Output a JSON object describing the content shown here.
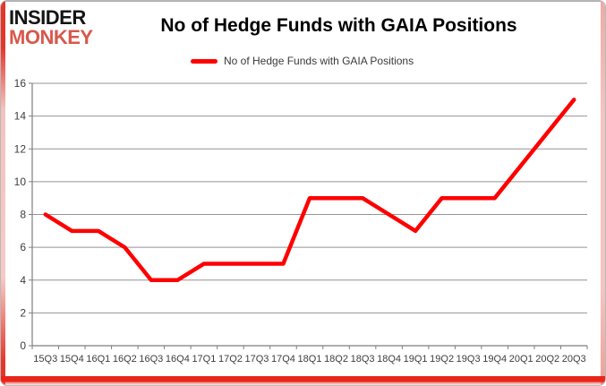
{
  "logo": {
    "line1": "INSIDER",
    "line2": "MONKEY"
  },
  "title": "No of Hedge Funds with GAIA Positions",
  "legend": {
    "label": "No of Hedge Funds with GAIA Positions"
  },
  "colors": {
    "line": "#fe0000",
    "logo_black": "#141414",
    "logo_red": "#d8584b",
    "border_red": "#e8251a",
    "gridline": "#949494",
    "axis": "#7e7e7e",
    "tick_label": "#3d3d3d"
  },
  "chart_data": {
    "type": "line",
    "title": "No of Hedge Funds with GAIA Positions",
    "categories": [
      "15Q3",
      "15Q4",
      "16Q1",
      "16Q2",
      "16Q3",
      "16Q4",
      "17Q1",
      "17Q2",
      "17Q3",
      "17Q4",
      "18Q1",
      "18Q2",
      "18Q3",
      "18Q4",
      "19Q1",
      "19Q2",
      "19Q3",
      "19Q4",
      "20Q1",
      "20Q2",
      "20Q3"
    ],
    "series": [
      {
        "name": "No of Hedge Funds with GAIA Positions",
        "color": "#fe0000",
        "values": [
          8,
          7,
          7,
          6,
          4,
          4,
          5,
          5,
          5,
          5,
          9,
          9,
          9,
          8,
          7,
          9,
          9,
          9,
          11,
          13,
          15
        ]
      }
    ],
    "xlabel": "",
    "ylabel": "",
    "ylim": [
      0,
      16
    ],
    "yticks": [
      0,
      2,
      4,
      6,
      8,
      10,
      12,
      14,
      16
    ],
    "grid": true,
    "legend_position": "top-center"
  }
}
